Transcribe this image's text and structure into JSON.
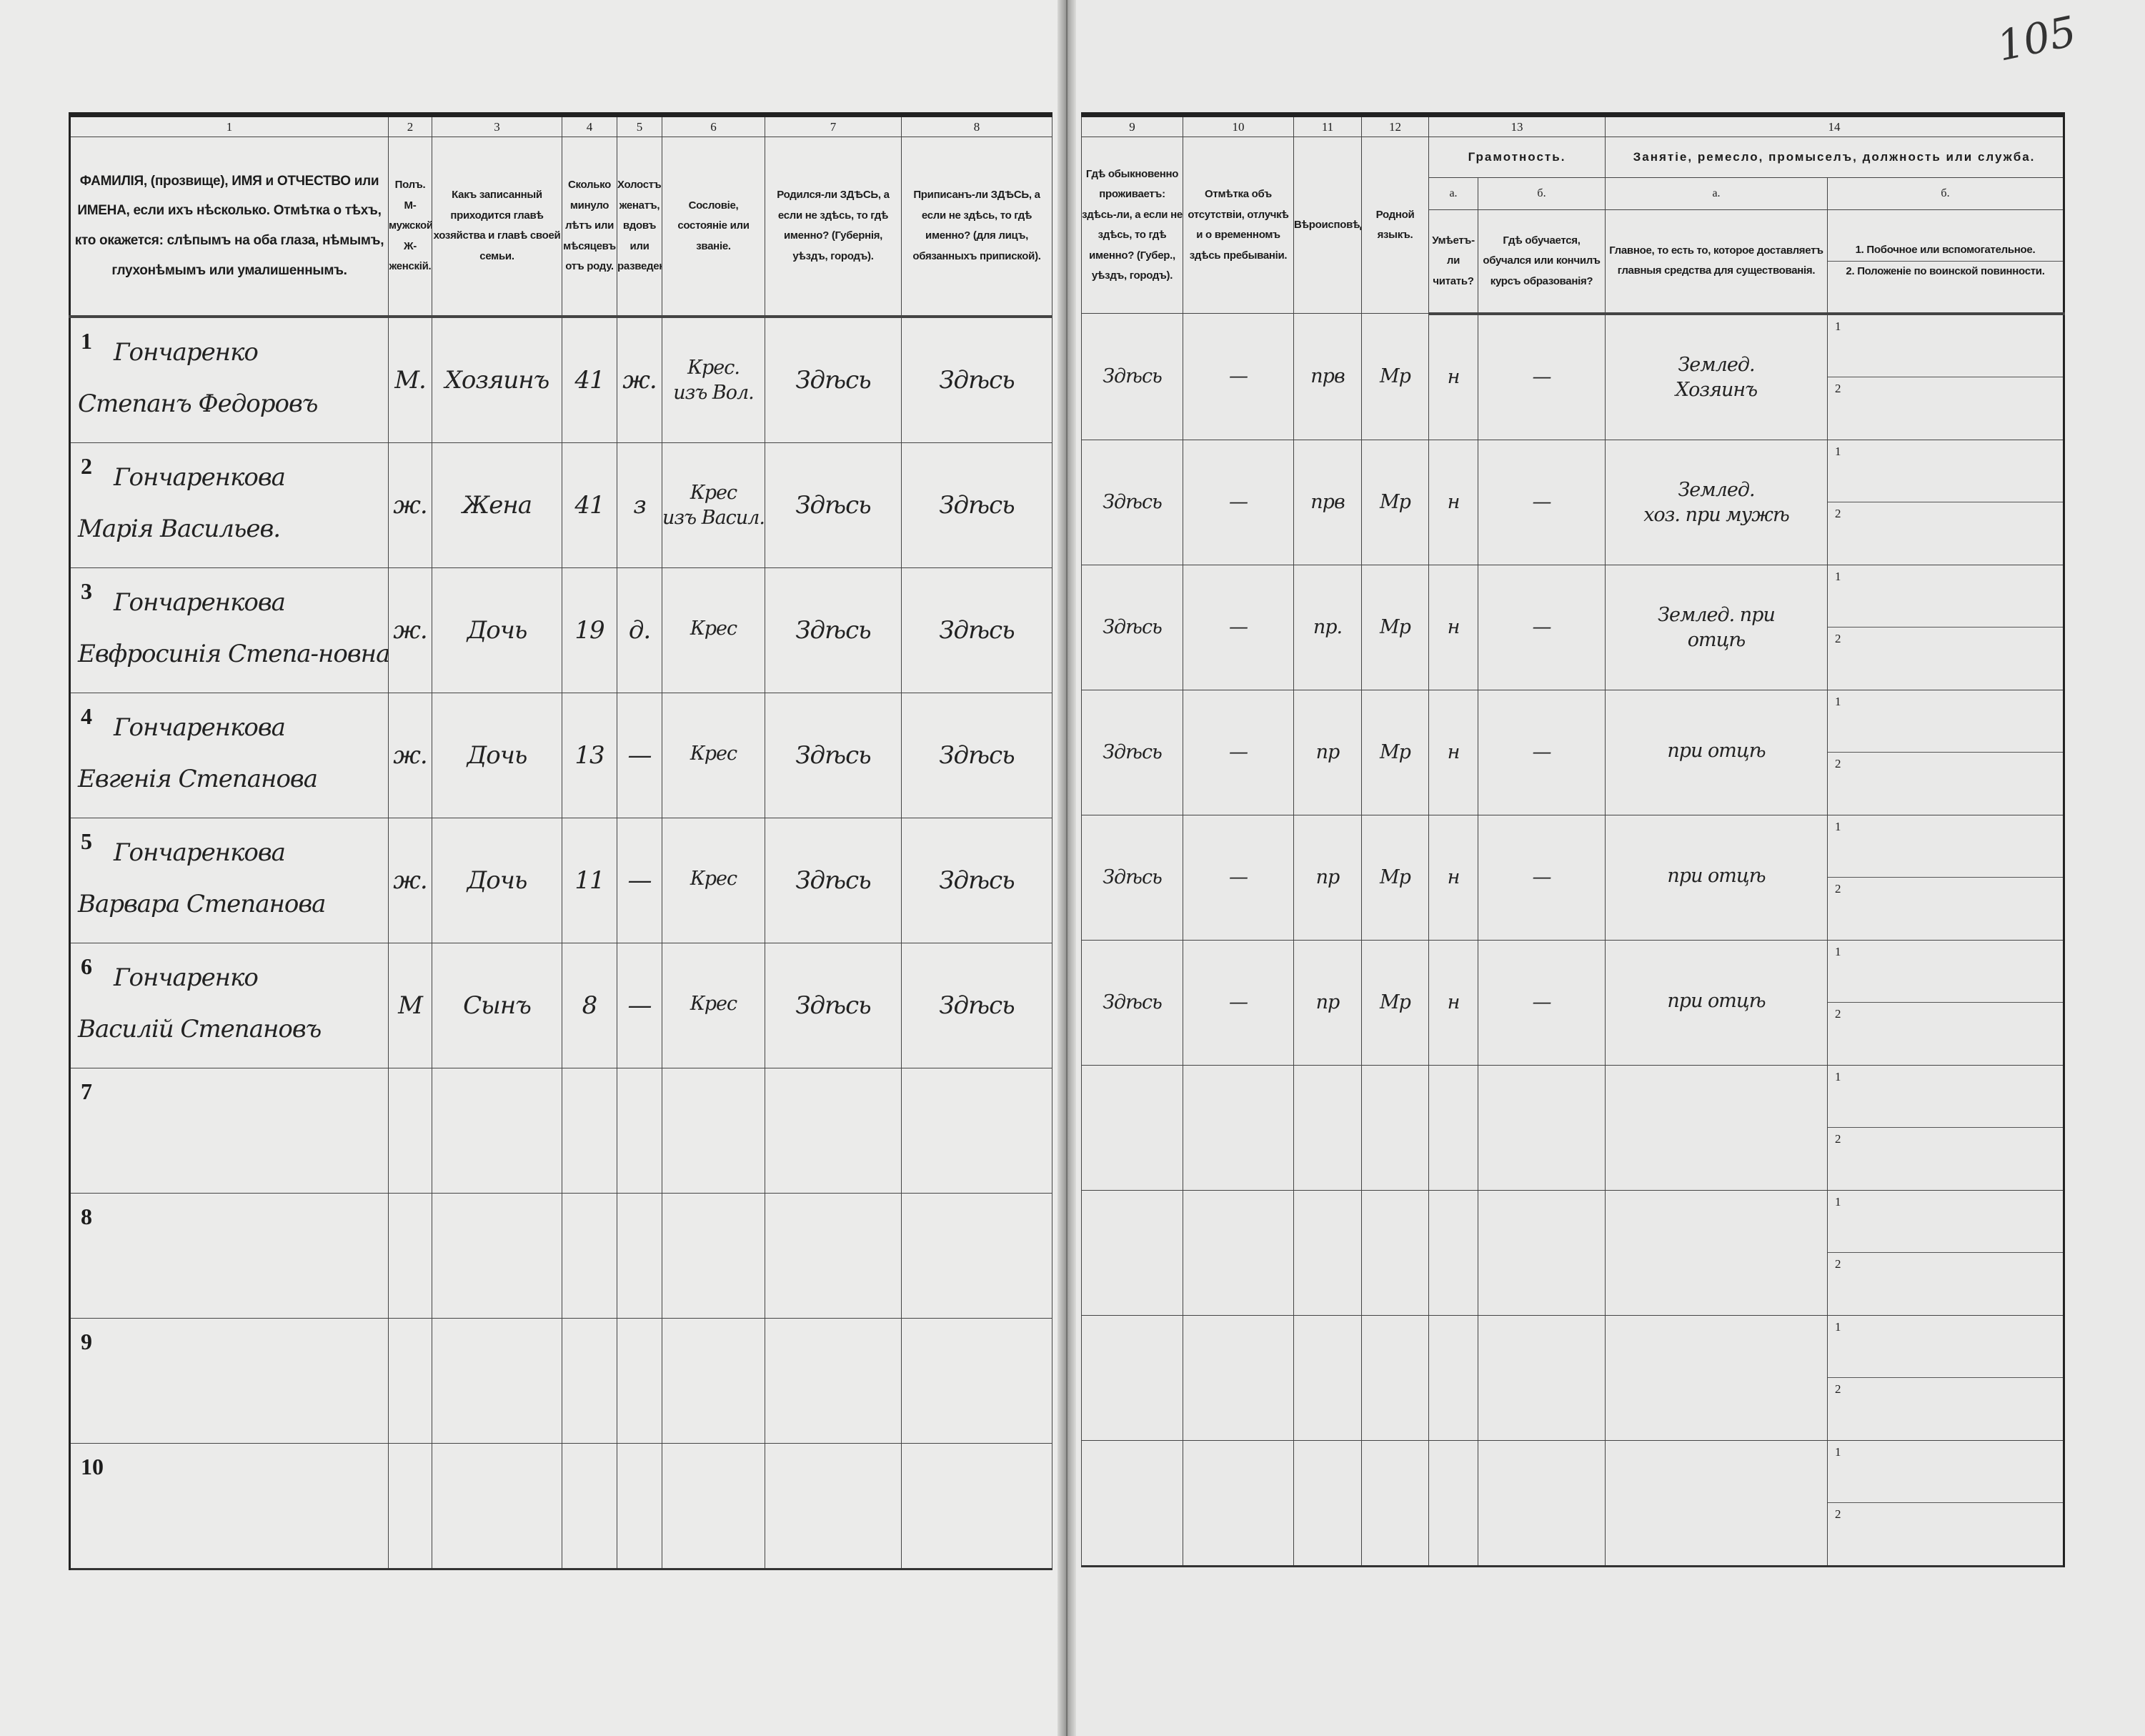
{
  "folio_number": "105",
  "left_table": {
    "column_numbers": [
      "1",
      "2",
      "3",
      "4",
      "5",
      "6",
      "7",
      "8"
    ],
    "column_labels": [
      "ФАМИЛІЯ, (прозвище), ИМЯ и ОТЧЕСТВО или ИМЕНА, если ихъ нѣсколько. Отмѣтка о тѣхъ, кто окажется: слѣпымъ на оба глаза, нѣмымъ, глухонѣмымъ или умалишеннымъ.",
      "Полъ. М-мужской. Ж-женскій.",
      "Какъ записанный приходится главѣ хозяйства и главѣ своей семьи.",
      "Сколько минуло лѣтъ или мѣсяцевъ отъ роду.",
      "Холостъ, женатъ, вдовъ или разведенъ.",
      "Сословіе, состояніе или званіе.",
      "Родился-ли ЗДѢСЬ, а если не здѣсь, то гдѣ именно? (Губернія, уѣздъ, городъ).",
      "Приписанъ-ли ЗДѢСЬ, а если не здѣсь, то гдѣ именно? (для лицъ, обязанныхъ припиской)."
    ]
  },
  "right_table": {
    "column_numbers": [
      "9",
      "10",
      "11",
      "12",
      "13",
      "14"
    ],
    "col9_label": "Гдѣ обыкновенно проживаетъ: здѣсь-ли, а если не здѣсь, то гдѣ именно? (Губер., уѣздъ, городъ).",
    "col10_label": "Отмѣтка объ отсутствіи, отлучкѣ и о временномъ здѣсь пребываніи.",
    "col11_label": "Вѣроисповѣданіе.",
    "col12_label": "Родной языкъ.",
    "col13_group": "Грамотность.",
    "col13a_sub": "а.",
    "col13b_sub": "б.",
    "col13a_label": "Умѣетъ-ли читать?",
    "col13b_label": "Гдѣ обучается, обучался или кончилъ курсъ образованія?",
    "col14_group": "Занятіе, ремесло, промыселъ, должность или служба.",
    "col14a_sub": "а.",
    "col14b_sub": "б.",
    "col14a_label": "Главное, то есть то, которое доставляетъ главныя средства для существованія.",
    "col14b_label_1": "1. Побочное или вспомогательное.",
    "col14b_label_2": "2. Положеніе по воинской повинности."
  },
  "sub_line_labels": [
    "1",
    "2"
  ],
  "rows": [
    {
      "num": "1",
      "surname": "Гончаренко",
      "given": "Степанъ Федоровъ",
      "sex": "М.",
      "relation": "Хозяинъ",
      "age": "41",
      "marital": "ж.",
      "estate": "Крес.",
      "estate2": "изъ Вол.",
      "born": "Здѣсь",
      "registered": "Здѣсь",
      "resides": "Здѣсь",
      "absence": "—",
      "religion": "прв",
      "language": "Мр",
      "literate": "н",
      "education": "—",
      "occupation": "Землед.",
      "occupation2": "Хозяинъ"
    },
    {
      "num": "2",
      "surname": "Гончаренкова",
      "given": "Марія Васильев.",
      "sex": "ж.",
      "relation": "Жена",
      "age": "41",
      "marital": "з",
      "estate": "Крес",
      "estate2": "изъ Васил.",
      "born": "Здѣсь",
      "registered": "Здѣсь",
      "resides": "Здѣсь",
      "absence": "—",
      "religion": "прв",
      "language": "Мр",
      "literate": "н",
      "education": "—",
      "occupation": "Землед.",
      "occupation2": "хоз. при мужѣ"
    },
    {
      "num": "3",
      "surname": "Гончаренкова",
      "given": "Евфросинія Степа-новна",
      "sex": "ж.",
      "relation": "Дочь",
      "age": "19",
      "marital": "д.",
      "estate": "Крес",
      "estate2": "",
      "born": "Здѣсь",
      "registered": "Здѣсь",
      "resides": "Здѣсь",
      "absence": "—",
      "religion": "пр.",
      "language": "Мр",
      "literate": "н",
      "education": "—",
      "occupation": "Землед. при",
      "occupation2": "отцѣ"
    },
    {
      "num": "4",
      "surname": "Гончаренкова",
      "given": "Евгенія Степанова",
      "sex": "ж.",
      "relation": "Дочь",
      "age": "13",
      "marital": "—",
      "estate": "Крес",
      "estate2": "",
      "born": "Здѣсь",
      "registered": "Здѣсь",
      "resides": "Здѣсь",
      "absence": "—",
      "religion": "пр",
      "language": "Мр",
      "literate": "н",
      "education": "—",
      "occupation": "при отцѣ",
      "occupation2": ""
    },
    {
      "num": "5",
      "surname": "Гончаренкова",
      "given": "Варвара Степанова",
      "sex": "ж.",
      "relation": "Дочь",
      "age": "11",
      "marital": "—",
      "estate": "Крес",
      "estate2": "",
      "born": "Здѣсь",
      "registered": "Здѣсь",
      "resides": "Здѣсь",
      "absence": "—",
      "religion": "пр",
      "language": "Мр",
      "literate": "н",
      "education": "—",
      "occupation": "при отцѣ",
      "occupation2": ""
    },
    {
      "num": "6",
      "surname": "Гончаренко",
      "given": "Василій Степановъ",
      "sex": "М",
      "relation": "Сынъ",
      "age": "8",
      "marital": "—",
      "estate": "Крес",
      "estate2": "",
      "born": "Здѣсь",
      "registered": "Здѣсь",
      "resides": "Здѣсь",
      "absence": "—",
      "religion": "пр",
      "language": "Мр",
      "literate": "н",
      "education": "—",
      "occupation": "при отцѣ",
      "occupation2": ""
    },
    {
      "num": "7"
    },
    {
      "num": "8"
    },
    {
      "num": "9"
    },
    {
      "num": "10"
    }
  ]
}
